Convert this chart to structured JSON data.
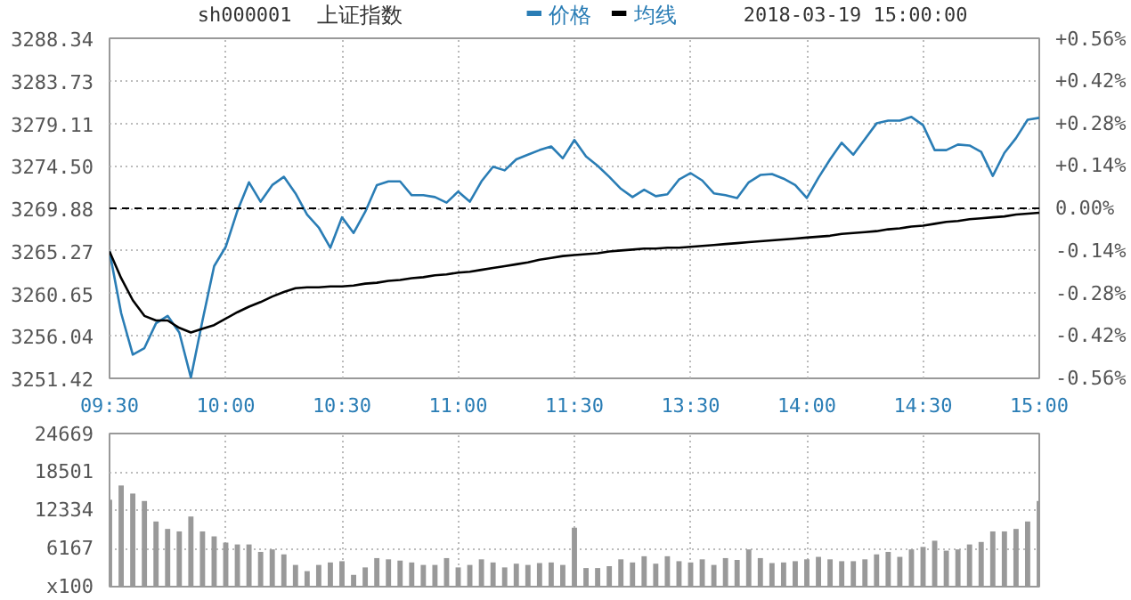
{
  "chart_data": [
    {
      "type": "line",
      "title": "上证指数",
      "subtitle": "sh000001",
      "annotations": [
        "2018-03-19 15:00:00"
      ],
      "categories": [
        "09:30",
        null,
        null,
        null,
        null,
        null,
        null,
        null,
        null,
        null,
        "10:00",
        null,
        null,
        null,
        null,
        null,
        null,
        null,
        null,
        null,
        "10:30",
        null,
        null,
        null,
        null,
        null,
        null,
        null,
        null,
        null,
        "11:00",
        null,
        null,
        null,
        null,
        null,
        null,
        null,
        null,
        null,
        "11:30",
        null,
        null,
        null,
        null,
        null,
        null,
        null,
        null,
        null,
        "13:30",
        null,
        null,
        null,
        null,
        null,
        null,
        null,
        null,
        null,
        "14:00",
        null,
        null,
        null,
        null,
        null,
        null,
        null,
        null,
        null,
        "14:30",
        null,
        null,
        null,
        null,
        null,
        null,
        null,
        null,
        null,
        "15:00"
      ],
      "ylim": [
        3251.42,
        3288.34
      ],
      "yticks": [
        3251.42,
        3256.04,
        3260.65,
        3265.27,
        3269.88,
        {
          "value": 3274.5,
          "label": "3274.50"
        },
        3279.11,
        3283.73,
        3288.34
      ],
      "y2lim": [
        -0.56,
        0.56
      ],
      "y2ticks": [
        {
          "value": -0.56,
          "label": "-0.56%"
        },
        {
          "value": -0.42,
          "label": "-0.42%"
        },
        {
          "value": -0.28,
          "label": "-0.28%"
        },
        {
          "value": -0.14,
          "label": "-0.14%"
        },
        {
          "value": 0,
          "label": "0.00%"
        },
        {
          "value": 0.14,
          "label": "+0.14%"
        },
        {
          "value": 0.28,
          "label": "+0.28%"
        },
        {
          "value": 0.42,
          "label": "+0.42%"
        },
        {
          "value": 0.56,
          "label": "+0.56%"
        }
      ],
      "ref_lines": [
        {
          "axis": "y",
          "value": 3269.88,
          "color": "#000000",
          "line_style": "dashed"
        }
      ],
      "grid": true,
      "legend": "top",
      "series": [
        {
          "name": "价格",
          "color": "#2a7db5",
          "values": [
            3265.2,
            3258.5,
            3254.0,
            3254.7,
            3257.4,
            3258.2,
            3256.4,
            3251.5,
            3257.7,
            3263.6,
            3265.7,
            3269.6,
            3272.7,
            3270.6,
            3272.4,
            3273.3,
            3271.5,
            3269.2,
            3267.8,
            3265.6,
            3268.9,
            3267.2,
            3269.5,
            3272.4,
            3272.8,
            3272.8,
            3271.3,
            3271.3,
            3271.1,
            3270.5,
            3271.7,
            3270.6,
            3272.8,
            3274.4,
            3274.0,
            3275.2,
            3275.7,
            3276.2,
            3276.6,
            3275.3,
            3277.3,
            3275.5,
            3274.5,
            3273.3,
            3272.0,
            3271.1,
            3271.9,
            3271.2,
            3271.4,
            3273.0,
            3273.7,
            3272.9,
            3271.5,
            3271.3,
            3271.0,
            3272.7,
            3273.5,
            3273.6,
            3273.1,
            3272.4,
            3271.0,
            3273.2,
            3275.2,
            3277.0,
            3275.7,
            3277.4,
            3279.1,
            3279.4,
            3279.4,
            3279.8,
            3278.9,
            3276.2,
            3276.2,
            3276.8,
            3276.7,
            3276.0,
            3273.4,
            3275.9,
            3277.5,
            3279.5,
            3279.7
          ]
        },
        {
          "name": "均线",
          "color": "#000000",
          "values": [
            3265.2,
            3262.3,
            3259.9,
            3258.2,
            3257.7,
            3257.7,
            3256.9,
            3256.4,
            3256.8,
            3257.2,
            3257.9,
            3258.6,
            3259.2,
            3259.7,
            3260.3,
            3260.8,
            3261.2,
            3261.3,
            3261.3,
            3261.4,
            3261.4,
            3261.5,
            3261.7,
            3261.8,
            3262.0,
            3262.1,
            3262.3,
            3262.4,
            3262.6,
            3262.7,
            3262.9,
            3263.0,
            3263.2,
            3263.4,
            3263.6,
            3263.8,
            3264.0,
            3264.3,
            3264.5,
            3264.7,
            3264.8,
            3264.9,
            3265.0,
            3265.2,
            3265.3,
            3265.4,
            3265.5,
            3265.5,
            3265.6,
            3265.6,
            3265.7,
            3265.8,
            3265.9,
            3266.0,
            3266.1,
            3266.2,
            3266.3,
            3266.4,
            3266.5,
            3266.6,
            3266.7,
            3266.8,
            3266.9,
            3267.1,
            3267.2,
            3267.3,
            3267.4,
            3267.6,
            3267.7,
            3267.9,
            3268.0,
            3268.2,
            3268.4,
            3268.5,
            3268.7,
            3268.8,
            3268.9,
            3269.0,
            3269.2,
            3269.3,
            3269.4
          ]
        }
      ]
    },
    {
      "type": "bar",
      "color": "#999999",
      "tick_labels": "y",
      "grid": true,
      "categories": [
        null,
        null,
        null,
        null,
        null,
        null,
        null,
        null,
        null,
        null,
        null,
        null,
        null,
        null,
        null,
        null,
        null,
        null,
        null,
        null,
        null,
        null,
        null,
        null,
        null,
        null,
        null,
        null,
        null,
        null,
        null,
        null,
        null,
        null,
        null,
        null,
        null,
        null,
        null,
        null,
        null,
        null,
        null,
        null,
        null,
        null,
        null,
        null,
        null,
        null,
        null,
        null,
        null,
        null,
        null,
        null,
        null,
        null,
        null,
        null,
        null,
        null,
        null,
        null,
        null,
        null,
        null,
        null,
        null,
        null,
        null,
        null,
        null,
        null,
        null,
        null,
        null,
        null,
        null,
        null,
        null
      ],
      "ylim": [
        0,
        24669
      ],
      "yticks": [
        {
          "value": 0,
          "label": "x100"
        },
        6167,
        12334,
        18501,
        24669
      ],
      "values": [
        14000,
        16300,
        15000,
        13800,
        10500,
        9300,
        8900,
        11300,
        8900,
        8100,
        7100,
        6800,
        6800,
        5600,
        6000,
        5200,
        3500,
        2500,
        3500,
        3900,
        4100,
        1900,
        3100,
        4600,
        4400,
        4200,
        3900,
        3500,
        3500,
        4600,
        3100,
        3500,
        4400,
        3900,
        3100,
        3700,
        3500,
        3800,
        3900,
        3500,
        9500,
        3000,
        3000,
        3300,
        4400,
        3900,
        4900,
        3700,
        4900,
        4100,
        3900,
        4400,
        3500,
        4600,
        4300,
        6000,
        4600,
        3800,
        3900,
        4100,
        4400,
        4800,
        4400,
        4100,
        4100,
        4400,
        5200,
        5600,
        4800,
        6000,
        6400,
        7400,
        5800,
        6000,
        6800,
        7200,
        8900,
        8900,
        9300,
        10500,
        13800
      ]
    }
  ]
}
